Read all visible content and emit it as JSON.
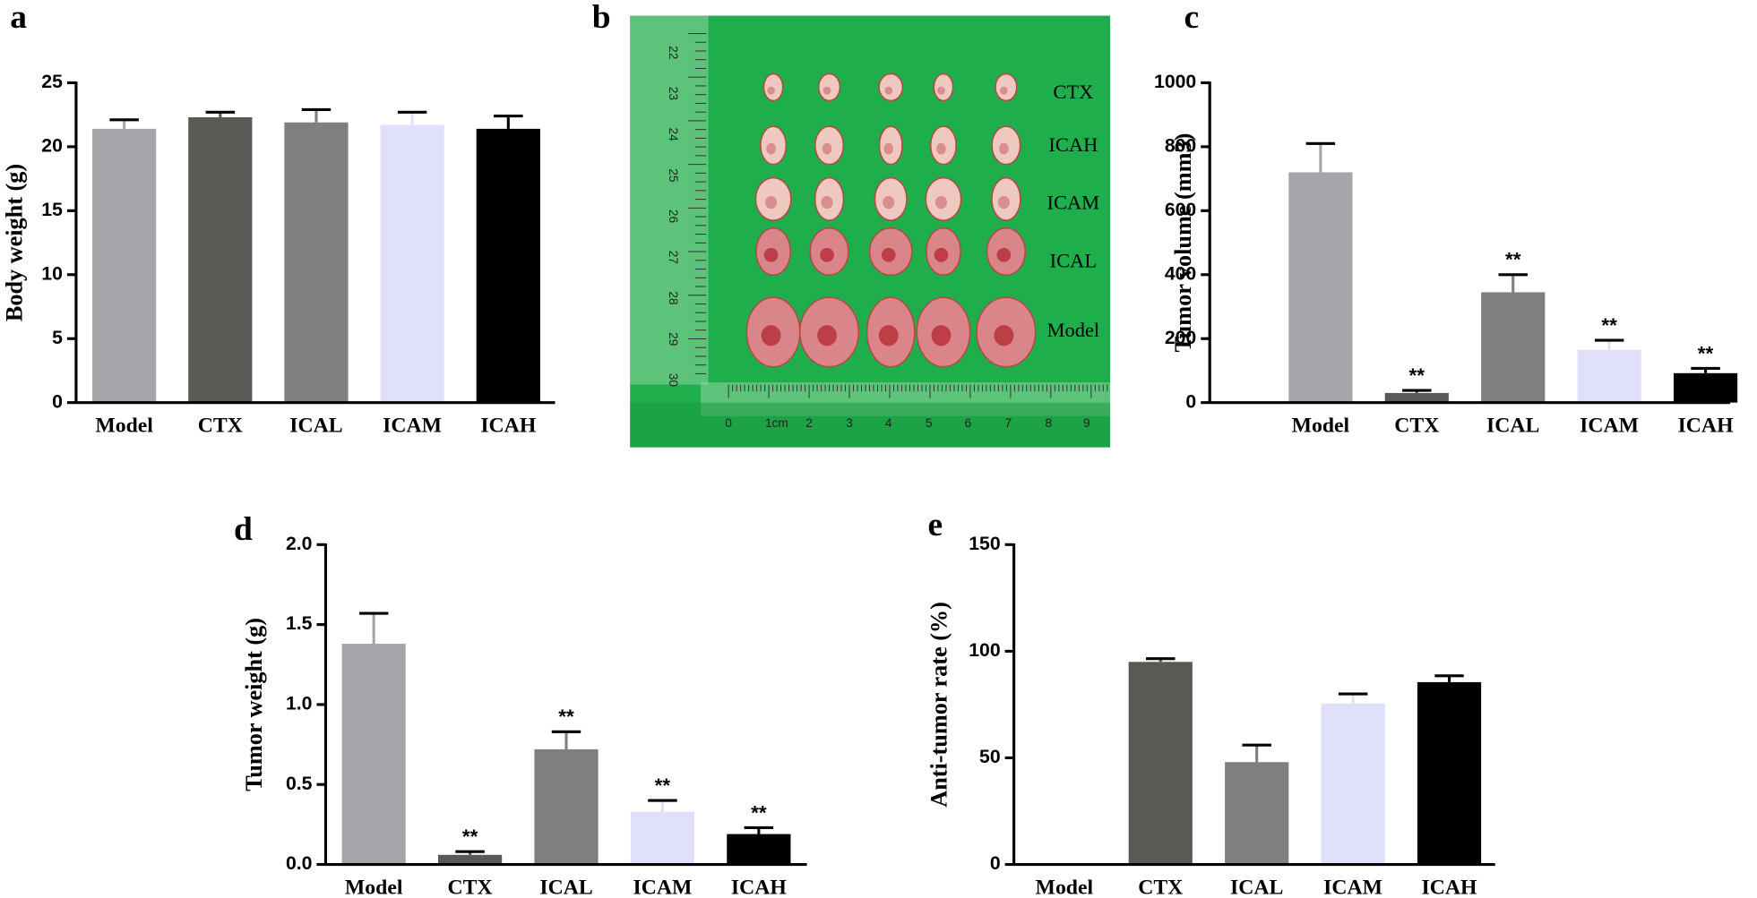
{
  "chart_data": [
    {
      "type": "bar",
      "panel": "a",
      "y_label": "Body weight  (g)",
      "categories": [
        "Model",
        "CTX",
        "ICAL",
        "ICAM",
        "ICAH"
      ],
      "values": [
        21.4,
        22.3,
        21.9,
        21.7,
        21.4
      ],
      "errors": [
        0.7,
        0.4,
        1.0,
        1.0,
        1.0
      ],
      "colors": [
        "#a6a5aa",
        "#595a55",
        "#7f7f7f",
        "#e0e0fb",
        "#000000"
      ],
      "ylim": [
        0,
        25
      ],
      "yticks": [
        0,
        5,
        10,
        15,
        20,
        25
      ]
    },
    {
      "type": "bar",
      "panel": "c",
      "y_label": "Tumor volume (mm3)",
      "categories": [
        "Model",
        "CTX",
        "ICAL",
        "ICAM",
        "ICAH"
      ],
      "values": [
        720,
        30,
        345,
        165,
        92
      ],
      "errors": [
        90,
        8,
        55,
        30,
        15
      ],
      "annotations": [
        null,
        "**",
        "**",
        "**",
        "**"
      ],
      "colors": [
        "#a6a5aa",
        "#595a55",
        "#7f7f7f",
        "#e0e0fb",
        "#000000"
      ],
      "ylim": [
        0,
        1000
      ],
      "yticks": [
        0,
        200,
        400,
        600,
        800,
        1000
      ]
    },
    {
      "type": "bar",
      "panel": "d",
      "y_label": "Tumor weight (g)",
      "categories": [
        "Model",
        "CTX",
        "ICAL",
        "ICAM",
        "ICAH"
      ],
      "values": [
        1.38,
        0.06,
        0.72,
        0.33,
        0.19
      ],
      "errors": [
        0.19,
        0.02,
        0.11,
        0.07,
        0.04
      ],
      "annotations": [
        null,
        "**",
        "**",
        "**",
        "**"
      ],
      "colors": [
        "#a6a5aa",
        "#595a55",
        "#7f7f7f",
        "#e0e0fb",
        "#000000"
      ],
      "ylim": [
        0,
        2.0
      ],
      "yticks": [
        {
          "value": 0,
          "label": "0.0"
        },
        0.5,
        {
          "value": 1,
          "label": "1.0"
        },
        1.5,
        {
          "value": 2,
          "label": "2.0"
        }
      ]
    },
    {
      "type": "bar",
      "panel": "e",
      "y_label": "Anti-tumor rate (%)",
      "categories": [
        "Model",
        "CTX",
        "ICAL",
        "ICAM",
        "ICAH"
      ],
      "values": [
        0,
        95,
        48,
        75.5,
        85.5
      ],
      "errors": [
        null,
        1.5,
        8,
        4.5,
        3
      ],
      "colors": [
        "#a6a5aa",
        "#595a55",
        "#7f7f7f",
        "#e0e0fb",
        "#000000"
      ],
      "ylim": [
        0,
        150
      ],
      "yticks": [
        0,
        50,
        100,
        150
      ]
    }
  ],
  "photo": {
    "panel": "b",
    "row_labels": [
      "CTX",
      "ICAH",
      "ICAM",
      "ICAL",
      "Model"
    ],
    "ruler_vertical": [
      "22",
      "23",
      "24",
      "25",
      "26",
      "27",
      "28",
      "29",
      "30"
    ],
    "ruler_horizontal": [
      "0",
      "1cm",
      "2",
      "3",
      "4",
      "5",
      "6",
      "7",
      "8",
      "9"
    ]
  }
}
